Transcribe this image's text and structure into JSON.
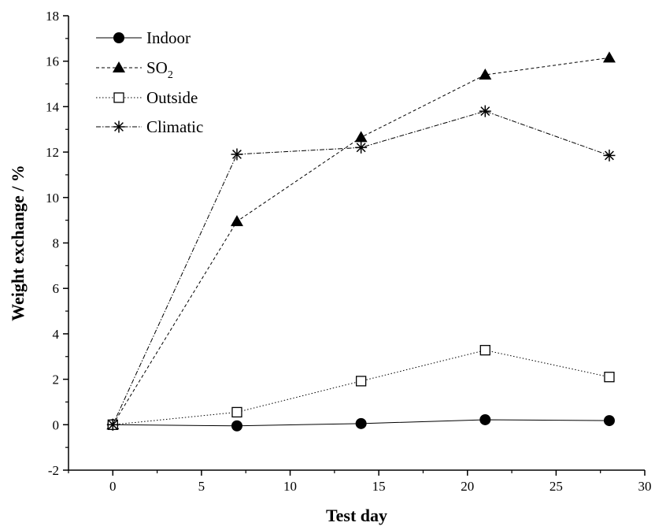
{
  "chart_data": {
    "type": "line",
    "title": "",
    "xlabel": "Test day",
    "ylabel": "Weight exchange / %",
    "xlim": [
      -2.5,
      30
    ],
    "ylim": [
      -2,
      18
    ],
    "x_ticks": [
      0,
      5,
      10,
      15,
      20,
      25,
      30
    ],
    "y_ticks": [
      -2,
      0,
      2,
      4,
      6,
      8,
      10,
      12,
      14,
      16,
      18
    ],
    "grid": false,
    "legend_position": "top-left",
    "x": [
      0,
      7,
      14,
      21,
      28
    ],
    "series": [
      {
        "name": "Indoor",
        "marker": "filled-circle",
        "line_style": "solid",
        "values": [
          0,
          -0.05,
          0.05,
          0.22,
          0.18
        ]
      },
      {
        "name": "SO",
        "name_subscript": "2",
        "marker": "filled-triangle",
        "line_style": "dashed",
        "values": [
          0,
          8.95,
          12.65,
          15.4,
          16.15
        ]
      },
      {
        "name": "Outside",
        "marker": "open-square",
        "line_style": "dotted",
        "values": [
          0,
          0.55,
          1.92,
          3.28,
          2.1
        ]
      },
      {
        "name": "Climatic",
        "marker": "asterisk",
        "line_style": "dash-dot",
        "values": [
          0,
          11.9,
          12.2,
          13.8,
          11.85
        ]
      }
    ],
    "colors": {
      "line": "#000000",
      "background": "#ffffff"
    }
  }
}
